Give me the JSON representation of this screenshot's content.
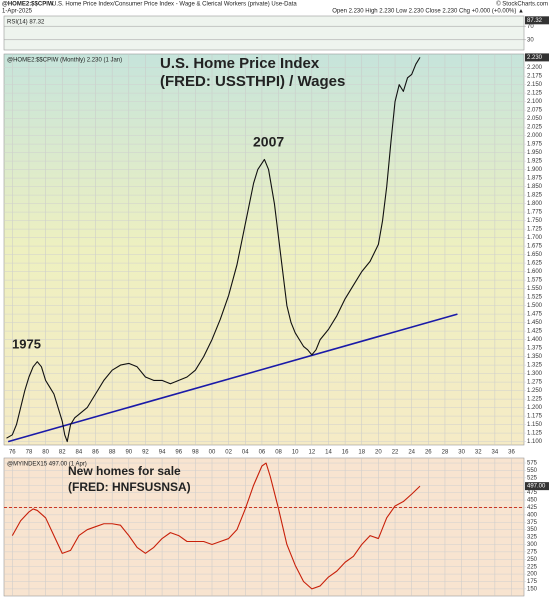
{
  "header": {
    "symbol": "@HOME2:$$CPIW",
    "description": "U.S. Home Price Index/Consumer Price Index - Wage & Clerical Workers (private) Use-Data",
    "credit": "© StockCharts.com",
    "date": "1-Apr-2025",
    "quote": "Open 2.230 High 2.230 Low 2.230 Close 2.230 Chg +0.000 (+0.00%) ▲"
  },
  "chart_data": [
    {
      "type": "indicator",
      "legend": "RSI(14) 87.32",
      "ylim": [
        0,
        100
      ],
      "yticks": [
        30,
        70
      ],
      "badge": {
        "value": 87.32,
        "label": "87.32"
      },
      "background": "#eef4ee"
    },
    {
      "type": "line",
      "legend": "@HOME2:$$CPIW (Monthly) 2.230 (1 Jan)",
      "annotations": [
        {
          "text": "U.S. Home Price Index",
          "color": "#111111"
        },
        {
          "text": "(FRED: USSTHPI) / Wages",
          "color": "#111111"
        },
        {
          "text": "2007",
          "color": "#1a2ba8"
        },
        {
          "text": "1975",
          "color": "#1a2ba8"
        }
      ],
      "x": [
        1975.3,
        1976,
        1976.5,
        1977,
        1977.5,
        1978,
        1978.5,
        1979,
        1979.5,
        1980,
        1980.5,
        1981,
        1981.5,
        1982,
        1982.3,
        1982.6,
        1983,
        1983.5,
        1984,
        1985,
        1986,
        1987,
        1988,
        1989,
        1990,
        1991,
        1992,
        1993,
        1994,
        1995,
        1996,
        1997,
        1998,
        1999,
        2000,
        2001,
        2002,
        2003,
        2004,
        2005,
        2005.5,
        2006.3,
        2006.8,
        2007.5,
        2008,
        2008.5,
        2009,
        2009.5,
        2010,
        2010.5,
        2011,
        2011.5,
        2012,
        2012.5,
        2013,
        2014,
        2015,
        2016,
        2017,
        2018,
        2019,
        2020,
        2020.5,
        2021,
        2021.5,
        2022,
        2022.5,
        2023,
        2023.5,
        2024,
        2024.5,
        2025
      ],
      "series": [
        {
          "name": "@HOME2:$$CPIW",
          "color": "#111111",
          "values": [
            1.11,
            1.12,
            1.15,
            1.2,
            1.25,
            1.29,
            1.32,
            1.335,
            1.32,
            1.28,
            1.26,
            1.24,
            1.2,
            1.16,
            1.12,
            1.1,
            1.15,
            1.17,
            1.18,
            1.2,
            1.24,
            1.28,
            1.31,
            1.325,
            1.33,
            1.32,
            1.29,
            1.28,
            1.28,
            1.27,
            1.28,
            1.29,
            1.31,
            1.35,
            1.4,
            1.46,
            1.53,
            1.62,
            1.74,
            1.86,
            1.9,
            1.93,
            1.9,
            1.8,
            1.7,
            1.6,
            1.5,
            1.45,
            1.42,
            1.4,
            1.38,
            1.37,
            1.355,
            1.37,
            1.4,
            1.43,
            1.47,
            1.52,
            1.56,
            1.6,
            1.63,
            1.68,
            1.75,
            1.85,
            1.98,
            2.1,
            2.15,
            2.13,
            2.17,
            2.18,
            2.21,
            2.23
          ]
        }
      ],
      "trendline": {
        "x": [
          1975.5,
          2029.5
        ],
        "values": [
          1.1,
          1.475
        ],
        "color": "#1a1aa8"
      },
      "xlim": [
        1975,
        2037.5
      ],
      "ylim": [
        1.09,
        2.24
      ],
      "xticks": [
        {
          "value": 1976,
          "label": "76"
        },
        {
          "value": 1978,
          "label": "78"
        },
        {
          "value": 1980,
          "label": "80"
        },
        {
          "value": 1982,
          "label": "82"
        },
        {
          "value": 1984,
          "label": "84"
        },
        {
          "value": 1986,
          "label": "86"
        },
        {
          "value": 1988,
          "label": "88"
        },
        {
          "value": 1990,
          "label": "90"
        },
        {
          "value": 1992,
          "label": "92"
        },
        {
          "value": 1994,
          "label": "94"
        },
        {
          "value": 1996,
          "label": "96"
        },
        {
          "value": 1998,
          "label": "98"
        },
        {
          "value": 2000,
          "label": "00"
        },
        {
          "value": 2002,
          "label": "02"
        },
        {
          "value": 2004,
          "label": "04"
        },
        {
          "value": 2006,
          "label": "06"
        },
        {
          "value": 2008,
          "label": "08"
        },
        {
          "value": 2010,
          "label": "10"
        },
        {
          "value": 2012,
          "label": "12"
        },
        {
          "value": 2014,
          "label": "14"
        },
        {
          "value": 2016,
          "label": "16"
        },
        {
          "value": 2018,
          "label": "18"
        },
        {
          "value": 2020,
          "label": "20"
        },
        {
          "value": 2022,
          "label": "22"
        },
        {
          "value": 2024,
          "label": "24"
        },
        {
          "value": 2026,
          "label": "26"
        },
        {
          "value": 2028,
          "label": "28"
        },
        {
          "value": 2030,
          "label": "30"
        },
        {
          "value": 2032,
          "label": "32"
        },
        {
          "value": 2034,
          "label": "34"
        },
        {
          "value": 2036,
          "label": "36"
        }
      ],
      "yticks": [
        {
          "value": 1.1,
          "label": "1.100"
        },
        {
          "value": 1.125,
          "label": "1.125"
        },
        {
          "value": 1.15,
          "label": "1.150"
        },
        {
          "value": 1.175,
          "label": "1.175"
        },
        {
          "value": 1.2,
          "label": "1.200"
        },
        {
          "value": 1.225,
          "label": "1.225"
        },
        {
          "value": 1.25,
          "label": "1.250"
        },
        {
          "value": 1.275,
          "label": "1.275"
        },
        {
          "value": 1.3,
          "label": "1.300"
        },
        {
          "value": 1.325,
          "label": "1.325"
        },
        {
          "value": 1.35,
          "label": "1.350"
        },
        {
          "value": 1.375,
          "label": "1.375"
        },
        {
          "value": 1.4,
          "label": "1.400"
        },
        {
          "value": 1.425,
          "label": "1.425"
        },
        {
          "value": 1.45,
          "label": "1.450"
        },
        {
          "value": 1.475,
          "label": "1.475"
        },
        {
          "value": 1.5,
          "label": "1.500"
        },
        {
          "value": 1.525,
          "label": "1.525"
        },
        {
          "value": 1.55,
          "label": "1.550"
        },
        {
          "value": 1.575,
          "label": "1.575"
        },
        {
          "value": 1.6,
          "label": "1.600"
        },
        {
          "value": 1.625,
          "label": "1.625"
        },
        {
          "value": 1.65,
          "label": "1.650"
        },
        {
          "value": 1.675,
          "label": "1.675"
        },
        {
          "value": 1.7,
          "label": "1.700"
        },
        {
          "value": 1.725,
          "label": "1.725"
        },
        {
          "value": 1.75,
          "label": "1.750"
        },
        {
          "value": 1.775,
          "label": "1.775"
        },
        {
          "value": 1.8,
          "label": "1.800"
        },
        {
          "value": 1.825,
          "label": "1.825"
        },
        {
          "value": 1.85,
          "label": "1.850"
        },
        {
          "value": 1.875,
          "label": "1.875"
        },
        {
          "value": 1.9,
          "label": "1.900"
        },
        {
          "value": 1.925,
          "label": "1.925"
        },
        {
          "value": 1.95,
          "label": "1.950"
        },
        {
          "value": 1.975,
          "label": "1.975"
        },
        {
          "value": 2.0,
          "label": "2.000"
        },
        {
          "value": 2.025,
          "label": "2.025"
        },
        {
          "value": 2.05,
          "label": "2.050"
        },
        {
          "value": 2.075,
          "label": "2.075"
        },
        {
          "value": 2.1,
          "label": "2.100"
        },
        {
          "value": 2.125,
          "label": "2.125"
        },
        {
          "value": 2.15,
          "label": "2.150"
        },
        {
          "value": 2.175,
          "label": "2.175"
        },
        {
          "value": 2.2,
          "label": "2.200"
        }
      ],
      "badge": {
        "value": 2.23,
        "label": "2.230"
      },
      "grid": true
    },
    {
      "type": "line",
      "legend": "@MYINDEX15 497.00 (1 Apr)",
      "annotations": [
        {
          "text": "New homes for sale",
          "color": "#d42a0a"
        },
        {
          "text": "(FRED: HNFSUSNSA)",
          "color": "#d42a0a"
        }
      ],
      "x": [
        1976,
        1977,
        1978,
        1978.5,
        1979,
        1980,
        1981,
        1982,
        1983,
        1984,
        1985,
        1986,
        1987,
        1988,
        1989,
        1990,
        1991,
        1992,
        1993,
        1994,
        1995,
        1996,
        1997,
        1998,
        1999,
        2000,
        2001,
        2002,
        2003,
        2004,
        2005,
        2006,
        2006.5,
        2007,
        2008,
        2009,
        2010,
        2011,
        2012,
        2013,
        2014,
        2015,
        2016,
        2017,
        2018,
        2019,
        2020,
        2021,
        2022,
        2023,
        2024,
        2025
      ],
      "series": [
        {
          "name": "@MYINDEX15",
          "color": "#c8200a",
          "values": [
            330,
            380,
            410,
            420,
            415,
            390,
            330,
            270,
            280,
            330,
            350,
            360,
            370,
            370,
            365,
            330,
            290,
            270,
            290,
            320,
            340,
            330,
            310,
            310,
            310,
            300,
            310,
            320,
            350,
            420,
            500,
            565,
            575,
            530,
            420,
            300,
            230,
            175,
            150,
            160,
            190,
            210,
            240,
            260,
            300,
            330,
            320,
            390,
            430,
            445,
            470,
            497
          ]
        }
      ],
      "reference_line": 425,
      "xlim": [
        1975,
        2037.5
      ],
      "ylim": [
        126,
        592
      ],
      "xticks": [
        1976,
        1978,
        1980,
        1982,
        1984,
        1986,
        1988,
        1990,
        1992,
        1994,
        1996,
        1998,
        2000,
        2002,
        2004,
        2006,
        2008,
        2010,
        2012,
        2014,
        2016,
        2018,
        2020,
        2022,
        2024,
        2026,
        2028,
        2030,
        2032,
        2034,
        2036
      ],
      "yticks": [
        150,
        175,
        200,
        225,
        250,
        275,
        300,
        325,
        350,
        375,
        400,
        425,
        450,
        475,
        500,
        525,
        550,
        575
      ],
      "badge": {
        "value": 497,
        "label": "497.00"
      },
      "grid": true,
      "background": "#f8e4d0"
    }
  ]
}
